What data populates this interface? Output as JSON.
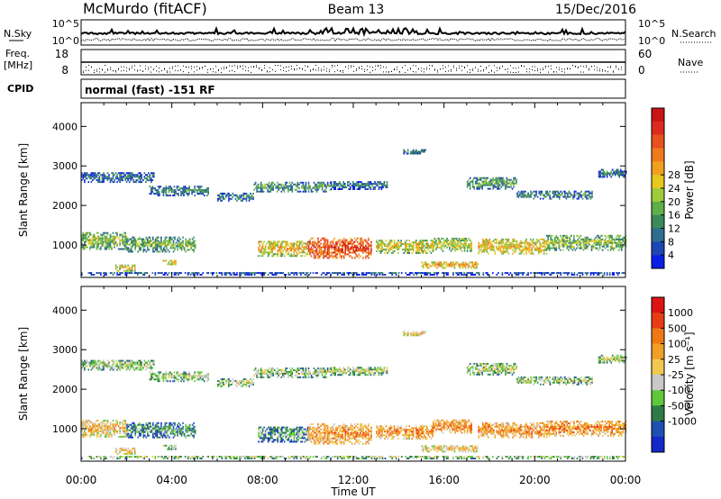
{
  "header": {
    "title": "McMurdo (fitACF)",
    "beam": "Beam 13",
    "date": "15/Dec/2016"
  },
  "strips": {
    "nsky_label": "N.Sky",
    "nsearch_label": "N.Search",
    "noise_ticks_left": [
      "10^5",
      "10^0"
    ],
    "noise_ticks_right": [
      "10^5",
      "10^0"
    ],
    "freq_label": "Freq.",
    "freq_unit": "[MHz]",
    "freq_ticks": [
      "18",
      "8"
    ],
    "nave_label": "Nave",
    "nave_ticks": [
      "60",
      "0"
    ],
    "cpid_label": "CPID",
    "cpid_text": "normal (fast) -151 RF"
  },
  "chart_data": [
    {
      "type": "heatmap",
      "panel": "power",
      "ylabel": "Slant Range [km]",
      "xlabel": "Time UT",
      "x_ticks": [
        "00:00",
        "04:00",
        "08:00",
        "12:00",
        "16:00",
        "20:00",
        "00:00"
      ],
      "xlim": [
        0,
        24
      ],
      "ylim": [
        180,
        4600
      ],
      "y_ticks": [
        1000,
        2000,
        3000,
        4000
      ],
      "colorbar": {
        "label": "Power [dB]",
        "ticks": [
          "4",
          "8",
          "12",
          "16",
          "20",
          "24",
          "28"
        ],
        "colors": [
          "#0a1ee6",
          "#1e46b4",
          "#2e6e8c",
          "#3a8a5a",
          "#5fae4a",
          "#9ecb3a",
          "#e6c81e",
          "#f0a01e",
          "#ef7a1e",
          "#e8501e",
          "#dc2a1e",
          "#c81414"
        ]
      },
      "bands": [
        {
          "t_start": 0.0,
          "t_end": 24.0,
          "range_center": 260,
          "range_width": 70,
          "level": 0.2
        },
        {
          "t_start": 0.0,
          "t_end": 3.2,
          "range_center": 2700,
          "range_width": 260,
          "level": 0.25
        },
        {
          "t_start": 3.0,
          "t_end": 5.6,
          "range_center": 2350,
          "range_width": 240,
          "level": 0.3
        },
        {
          "t_start": 6.0,
          "t_end": 7.6,
          "range_center": 2200,
          "range_width": 200,
          "level": 0.25
        },
        {
          "t_start": 7.6,
          "t_end": 11.0,
          "range_center": 2450,
          "range_width": 240,
          "level": 0.35
        },
        {
          "t_start": 11.0,
          "t_end": 13.5,
          "range_center": 2500,
          "range_width": 220,
          "level": 0.25
        },
        {
          "t_start": 14.2,
          "t_end": 15.2,
          "range_center": 3350,
          "range_width": 120,
          "level": 0.3
        },
        {
          "t_start": 17.0,
          "t_end": 19.2,
          "range_center": 2550,
          "range_width": 300,
          "level": 0.35
        },
        {
          "t_start": 19.2,
          "t_end": 22.5,
          "range_center": 2250,
          "range_width": 200,
          "level": 0.3
        },
        {
          "t_start": 22.8,
          "t_end": 24.0,
          "range_center": 2800,
          "range_width": 200,
          "level": 0.25
        },
        {
          "t_start": 0.0,
          "t_end": 2.0,
          "range_center": 1100,
          "range_width": 450,
          "level": 0.45
        },
        {
          "t_start": 2.0,
          "t_end": 5.0,
          "range_center": 1000,
          "range_width": 380,
          "level": 0.4
        },
        {
          "t_start": 1.5,
          "t_end": 2.4,
          "range_center": 400,
          "range_width": 150,
          "level": 0.55
        },
        {
          "t_start": 3.6,
          "t_end": 4.2,
          "range_center": 550,
          "range_width": 120,
          "level": 0.6
        },
        {
          "t_start": 7.8,
          "t_end": 10.0,
          "range_center": 900,
          "range_width": 400,
          "level": 0.6
        },
        {
          "t_start": 10.0,
          "t_end": 12.8,
          "range_center": 900,
          "range_width": 500,
          "level": 0.85
        },
        {
          "t_start": 13.0,
          "t_end": 15.5,
          "range_center": 950,
          "range_width": 350,
          "level": 0.55
        },
        {
          "t_start": 15.5,
          "t_end": 17.2,
          "range_center": 1000,
          "range_width": 350,
          "level": 0.5
        },
        {
          "t_start": 15.0,
          "t_end": 17.5,
          "range_center": 480,
          "range_width": 160,
          "level": 0.65
        },
        {
          "t_start": 17.5,
          "t_end": 20.5,
          "range_center": 950,
          "range_width": 380,
          "level": 0.6
        },
        {
          "t_start": 20.5,
          "t_end": 24.0,
          "range_center": 1050,
          "range_width": 400,
          "level": 0.45
        }
      ]
    },
    {
      "type": "heatmap",
      "panel": "velocity",
      "ylabel": "Slant Range [km]",
      "xlabel": "Time UT",
      "x_ticks": [
        "00:00",
        "04:00",
        "08:00",
        "12:00",
        "16:00",
        "20:00",
        "00:00"
      ],
      "xlim": [
        0,
        24
      ],
      "ylim": [
        180,
        4600
      ],
      "y_ticks": [
        1000,
        2000,
        3000,
        4000
      ],
      "colorbar": {
        "label": "Velocity [m s⁻¹]",
        "ticks": [
          "1000",
          "500",
          "100",
          "25",
          "-25",
          "-100",
          "-500",
          "-1000"
        ],
        "colors": [
          "#1428c8",
          "#1e50b4",
          "#2e7a46",
          "#5fc83a",
          "#c8c8c8",
          "#f0c850",
          "#f0a028",
          "#f07814",
          "#e83c14",
          "#dc1414"
        ]
      },
      "bands": [
        {
          "t_start": 0.0,
          "t_end": 24.0,
          "range_center": 260,
          "range_width": 70,
          "level": 0.45
        },
        {
          "t_start": 0.0,
          "t_end": 3.2,
          "range_center": 2600,
          "range_width": 260,
          "level": 0.45
        },
        {
          "t_start": 3.0,
          "t_end": 5.6,
          "range_center": 2300,
          "range_width": 240,
          "level": 0.45
        },
        {
          "t_start": 6.0,
          "t_end": 7.6,
          "range_center": 2150,
          "range_width": 200,
          "level": 0.45
        },
        {
          "t_start": 7.6,
          "t_end": 11.0,
          "range_center": 2400,
          "range_width": 240,
          "level": 0.45
        },
        {
          "t_start": 11.0,
          "t_end": 13.5,
          "range_center": 2450,
          "range_width": 220,
          "level": 0.45
        },
        {
          "t_start": 14.2,
          "t_end": 15.2,
          "range_center": 3400,
          "range_width": 120,
          "level": 0.6
        },
        {
          "t_start": 17.0,
          "t_end": 19.2,
          "range_center": 2500,
          "range_width": 300,
          "level": 0.45
        },
        {
          "t_start": 19.2,
          "t_end": 22.5,
          "range_center": 2200,
          "range_width": 200,
          "level": 0.45
        },
        {
          "t_start": 22.8,
          "t_end": 24.0,
          "range_center": 2750,
          "range_width": 200,
          "level": 0.45
        },
        {
          "t_start": 0.0,
          "t_end": 2.0,
          "range_center": 1000,
          "range_width": 450,
          "level": 0.62
        },
        {
          "t_start": 2.0,
          "t_end": 5.0,
          "range_center": 950,
          "range_width": 380,
          "level": 0.3
        },
        {
          "t_start": 1.5,
          "t_end": 2.4,
          "range_center": 420,
          "range_width": 150,
          "level": 0.6
        },
        {
          "t_start": 3.6,
          "t_end": 4.2,
          "range_center": 520,
          "range_width": 120,
          "level": 0.45
        },
        {
          "t_start": 7.8,
          "t_end": 10.0,
          "range_center": 850,
          "range_width": 400,
          "level": 0.32
        },
        {
          "t_start": 10.0,
          "t_end": 12.8,
          "range_center": 850,
          "range_width": 500,
          "level": 0.72
        },
        {
          "t_start": 13.0,
          "t_end": 15.5,
          "range_center": 900,
          "range_width": 350,
          "level": 0.72
        },
        {
          "t_start": 15.5,
          "t_end": 17.2,
          "range_center": 1050,
          "range_width": 350,
          "level": 0.74
        },
        {
          "t_start": 15.0,
          "t_end": 17.5,
          "range_center": 480,
          "range_width": 160,
          "level": 0.6
        },
        {
          "t_start": 17.5,
          "t_end": 20.5,
          "range_center": 950,
          "range_width": 380,
          "level": 0.72
        },
        {
          "t_start": 20.5,
          "t_end": 24.0,
          "range_center": 1000,
          "range_width": 400,
          "level": 0.74
        }
      ]
    }
  ]
}
